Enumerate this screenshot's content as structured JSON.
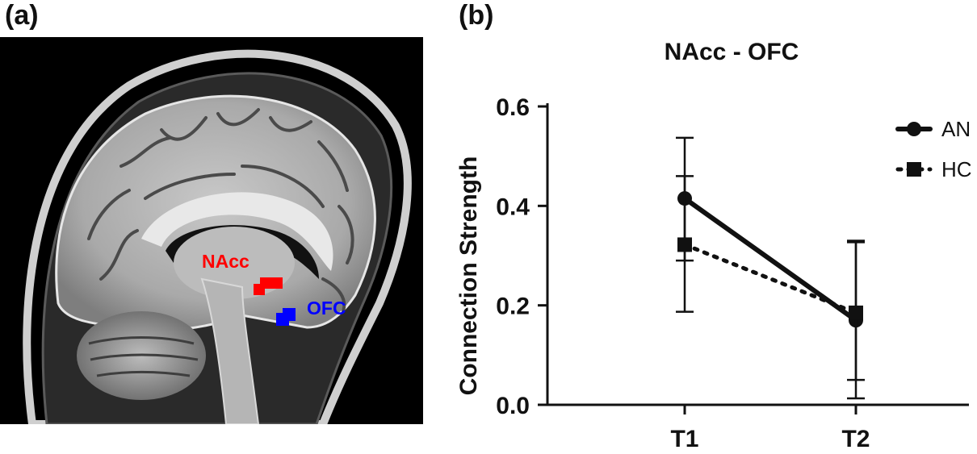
{
  "panels": {
    "a": "(a)",
    "b": "(b)"
  },
  "brain_image": {
    "regions": [
      {
        "name": "NAcc",
        "color": "#ff0000"
      },
      {
        "name": "OFC",
        "color": "#0000ff"
      }
    ]
  },
  "chart_data": {
    "type": "line",
    "title": "NAcc - OFC",
    "xlabel": "",
    "ylabel": "Connection Strength",
    "categories": [
      "T1",
      "T2"
    ],
    "ylim": [
      0.0,
      0.6
    ],
    "yticks": [
      "0.0",
      "0.2",
      "0.4",
      "0.6"
    ],
    "legend_position": "top-right",
    "series": [
      {
        "name": "AN",
        "marker": "circle",
        "line": "solid",
        "values": [
          0.415,
          0.17
        ],
        "err_upper": [
          0.537,
          0.327
        ],
        "err_lower": [
          0.187,
          0.013
        ]
      },
      {
        "name": "HC",
        "marker": "square",
        "line": "dotted",
        "values": [
          0.322,
          0.185
        ],
        "err_upper": [
          0.46,
          0.33
        ],
        "err_lower": [
          0.29,
          0.05
        ]
      }
    ]
  }
}
